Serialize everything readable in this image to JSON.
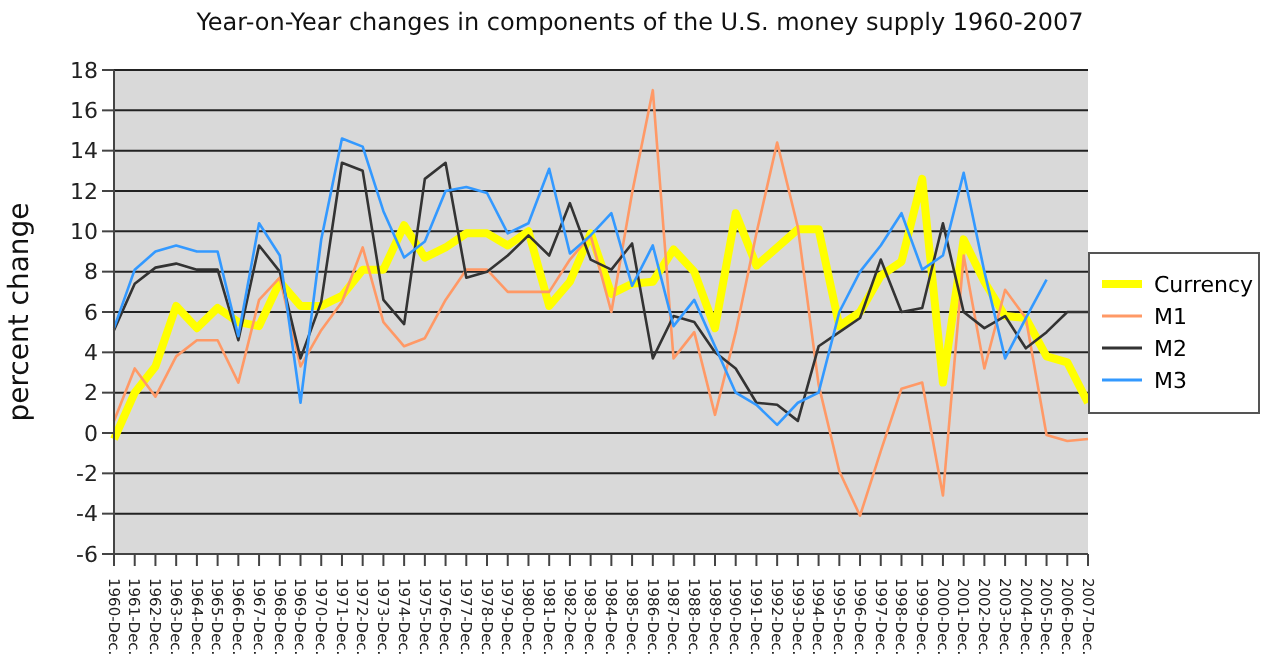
{
  "chart_data": {
    "type": "line",
    "title": "Year-on-Year changes in components of the U.S. money supply 1960-2007",
    "ylabel": "percent change",
    "categories": [
      "1960-Dec.",
      "1961-Dec.",
      "1962-Dec.",
      "1963-Dec.",
      "1964-Dec.",
      "1965-Dec.",
      "1966-Dec.",
      "1967-Dec.",
      "1968-Dec.",
      "1969-Dec.",
      "1970-Dec.",
      "1971-Dec.",
      "1972-Dec.",
      "1973-Dec.",
      "1974-Dec.",
      "1975-Dec.",
      "1976-Dec.",
      "1977-Dec.",
      "1978-Dec.",
      "1979-Dec.",
      "1980-Dec.",
      "1981-Dec.",
      "1982-Dec.",
      "1983-Dec.",
      "1984-Dec.",
      "1985-Dec.",
      "1986-Dec.",
      "1987-Dec.",
      "1988-Dec.",
      "1989-Dec.",
      "1990-Dec.",
      "1991-Dec.",
      "1992-Dec.",
      "1993-Dec.",
      "1994-Dec.",
      "1995-Dec.",
      "1996-Dec.",
      "1997-Dec.",
      "1998-Dec.",
      "1999-Dec.",
      "2000-Dec.",
      "2001-Dec.",
      "2002-Dec.",
      "2003-Dec.",
      "2004-Dec.",
      "2005-Dec.",
      "2006-Dec.",
      "2007-Dec."
    ],
    "series": [
      {
        "name": "Currency",
        "color": "#ffff00",
        "values": [
          -0.3,
          2.0,
          3.3,
          6.3,
          5.2,
          6.2,
          5.5,
          5.3,
          7.5,
          6.3,
          6.3,
          6.8,
          8.1,
          8.1,
          10.3,
          8.7,
          9.2,
          9.9,
          9.9,
          9.3,
          10.0,
          6.3,
          7.5,
          9.9,
          6.9,
          7.4,
          7.5,
          9.1,
          8.0,
          5.2,
          10.9,
          8.3,
          9.2,
          10.1,
          10.1,
          5.3,
          6.0,
          7.8,
          8.5,
          12.6,
          2.5,
          9.6,
          7.5,
          5.8,
          5.7,
          3.8,
          3.5,
          1.5
        ]
      },
      {
        "name": "M1",
        "color": "#ff9966",
        "values": [
          0.6,
          3.2,
          1.8,
          3.8,
          4.6,
          4.6,
          2.5,
          6.6,
          7.7,
          3.3,
          5.1,
          6.5,
          9.2,
          5.5,
          4.3,
          4.7,
          6.6,
          8.1,
          8.1,
          7.0,
          7.0,
          7.0,
          8.6,
          9.8,
          6.0,
          11.9,
          17.0,
          3.7,
          5.0,
          0.9,
          5.0,
          9.9,
          14.4,
          10.2,
          2.4,
          -1.9,
          -4.1,
          -0.9,
          2.2,
          2.5,
          -3.1,
          8.8,
          3.2,
          7.1,
          5.7,
          -0.1,
          -0.4,
          -0.3
        ]
      },
      {
        "name": "M2",
        "color": "#333333",
        "values": [
          5.1,
          7.4,
          8.2,
          8.4,
          8.1,
          8.1,
          4.6,
          9.3,
          8.0,
          3.7,
          6.5,
          13.4,
          13.0,
          6.6,
          5.4,
          12.6,
          13.4,
          7.7,
          8.0,
          8.8,
          9.8,
          8.8,
          11.4,
          8.6,
          8.1,
          9.4,
          3.7,
          5.8,
          5.5,
          4.0,
          3.2,
          1.5,
          1.4,
          0.6,
          4.3,
          5.0,
          5.7,
          8.6,
          6.0,
          6.2,
          10.4,
          6.0,
          5.2,
          5.8,
          4.2,
          5.0,
          6.0,
          6.0
        ]
      },
      {
        "name": "M3",
        "color": "#3399ff",
        "values": [
          5.2,
          8.1,
          9.0,
          9.3,
          9.0,
          9.0,
          4.8,
          10.4,
          8.8,
          1.5,
          9.6,
          14.6,
          14.2,
          11.0,
          8.7,
          9.5,
          12.0,
          12.2,
          11.9,
          9.9,
          10.4,
          13.1,
          8.9,
          9.8,
          10.9,
          7.3,
          9.3,
          5.3,
          6.6,
          4.3,
          2.0,
          1.4,
          0.4,
          1.5,
          2.0,
          6.0,
          8.0,
          9.3,
          10.9,
          8.1,
          8.8,
          12.9,
          8.0,
          3.7,
          5.7,
          7.6,
          null,
          null
        ]
      }
    ],
    "ylim": [
      -6,
      18
    ],
    "yticks": [
      -6,
      -4,
      -2,
      0,
      2,
      4,
      6,
      8,
      10,
      12,
      14,
      16,
      18
    ],
    "grid": "y",
    "legend": "right",
    "marker": "none"
  }
}
